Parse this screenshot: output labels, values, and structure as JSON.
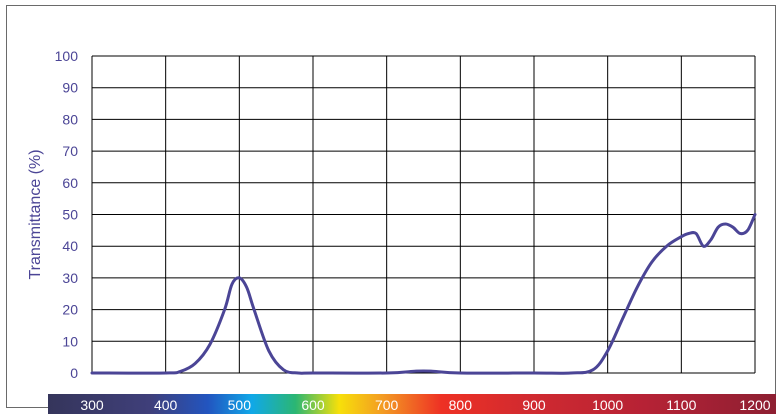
{
  "chart_data": {
    "type": "line",
    "title": "",
    "xlabel": "",
    "ylabel": "Transmittance (%)",
    "xlim": [
      300,
      1200
    ],
    "ylim": [
      0,
      100
    ],
    "x_ticks": [
      "300",
      "400",
      "500",
      "600",
      "700",
      "800",
      "900",
      "1000",
      "1100",
      "1200"
    ],
    "y_ticks": [
      "100",
      "90",
      "80",
      "70",
      "60",
      "50",
      "40",
      "30",
      "20",
      "10",
      "0"
    ],
    "grid": true,
    "legend": "none",
    "series": [
      {
        "color": "#4b4596",
        "x": [
          300,
          400,
          420,
          440,
          460,
          480,
          490,
          500,
          510,
          520,
          540,
          560,
          580,
          600,
          700,
          740,
          760,
          800,
          900,
          950,
          980,
          1000,
          1020,
          1040,
          1060,
          1080,
          1100,
          1110,
          1120,
          1130,
          1140,
          1150,
          1160,
          1170,
          1180,
          1190,
          1200
        ],
        "y": [
          0,
          0,
          0.5,
          3,
          9,
          20,
          28,
          30,
          27,
          20,
          7,
          1,
          0,
          0,
          0,
          0.6,
          0.6,
          0,
          0,
          0,
          1,
          7,
          17,
          27,
          35,
          40,
          43,
          44,
          44,
          40,
          42,
          46,
          47,
          46,
          44,
          45,
          50
        ]
      }
    ]
  },
  "colors": {
    "axis_text": "#4b4596",
    "curve": "#4b4596",
    "spectrum_bar": [
      "#35355b",
      "#3f3f7a",
      "#2255c0",
      "#10a8e8",
      "#2bb673",
      "#f7e00a",
      "#f39b23",
      "#ee3124",
      "#d12a30",
      "#b62235",
      "#8d1f32"
    ]
  }
}
